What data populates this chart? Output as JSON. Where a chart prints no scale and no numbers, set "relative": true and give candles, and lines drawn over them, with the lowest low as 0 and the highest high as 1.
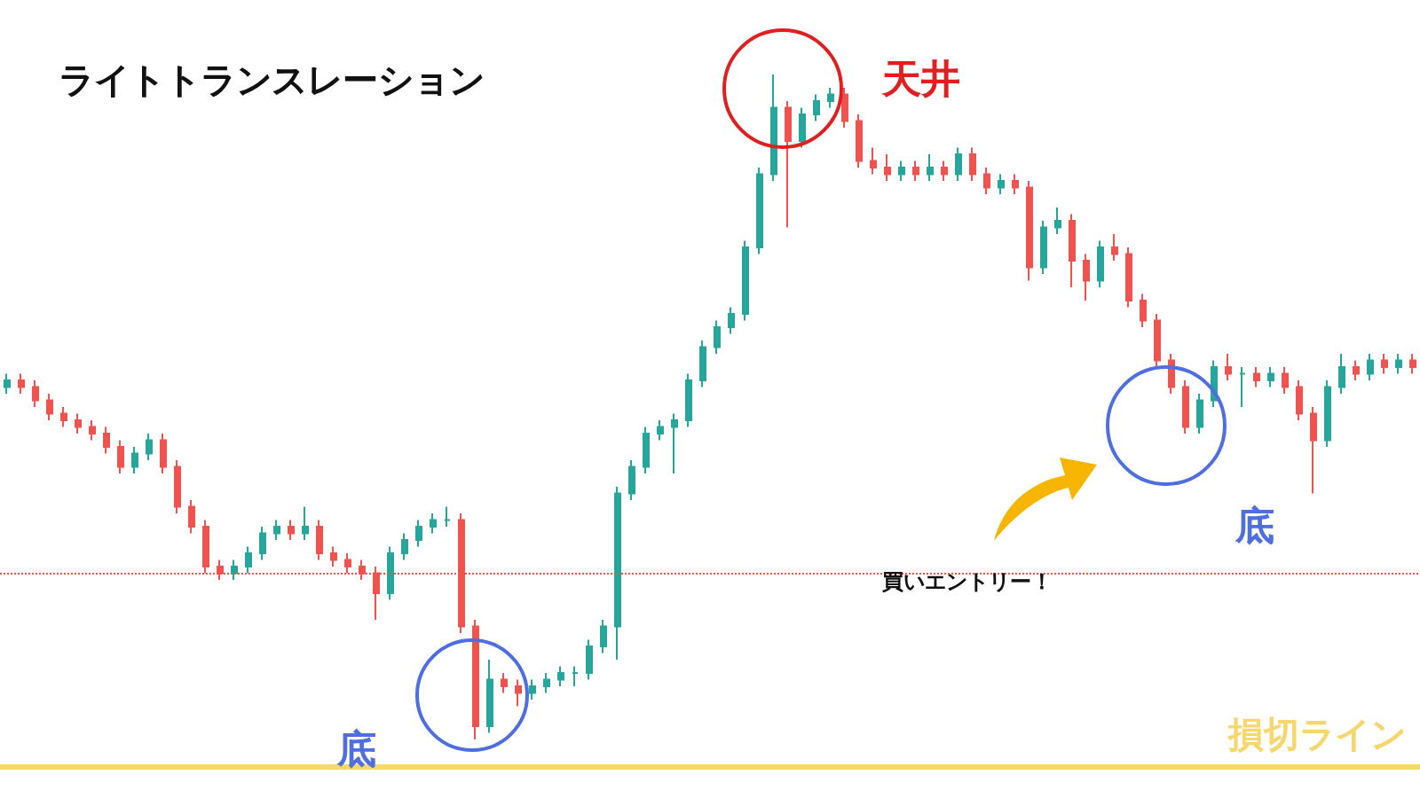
{
  "chart_data": {
    "type": "candlestick",
    "title": "ライトトランスレーション",
    "relative": true,
    "categories": [
      null,
      null,
      null,
      null,
      null,
      null,
      null,
      null,
      null,
      null,
      null,
      null,
      null,
      null,
      null,
      null,
      null,
      null,
      null,
      null,
      null,
      null,
      null,
      null,
      null,
      null,
      null,
      null,
      null,
      null,
      null,
      null,
      null,
      null,
      null,
      null,
      null,
      null,
      null,
      null,
      null,
      null,
      null,
      null,
      null,
      null,
      null,
      null,
      null,
      null,
      null,
      null,
      null,
      null,
      null,
      null,
      null,
      null,
      null,
      null,
      null,
      null,
      null,
      null,
      null,
      null,
      null,
      null,
      null,
      null,
      null,
      null,
      null,
      null,
      null,
      null,
      null,
      null,
      null,
      null,
      null,
      null,
      null,
      null,
      null,
      null,
      null,
      null,
      null,
      null,
      null,
      null,
      null,
      null,
      null,
      null,
      null,
      null,
      null,
      null
    ],
    "series": [
      {
        "ohlc": [
          [
            0.53,
            0.55,
            0.52,
            0.54
          ],
          [
            0.54,
            0.55,
            0.52,
            0.53
          ],
          [
            0.53,
            0.54,
            0.5,
            0.51
          ],
          [
            0.51,
            0.52,
            0.48,
            0.49
          ],
          [
            0.49,
            0.5,
            0.47,
            0.48
          ],
          [
            0.48,
            0.49,
            0.46,
            0.47
          ],
          [
            0.47,
            0.48,
            0.45,
            0.46
          ],
          [
            0.46,
            0.47,
            0.43,
            0.44
          ],
          [
            0.44,
            0.45,
            0.4,
            0.41
          ],
          [
            0.41,
            0.44,
            0.4,
            0.43
          ],
          [
            0.43,
            0.46,
            0.42,
            0.45
          ],
          [
            0.45,
            0.46,
            0.4,
            0.41
          ],
          [
            0.41,
            0.42,
            0.34,
            0.35
          ],
          [
            0.35,
            0.36,
            0.31,
            0.32
          ],
          [
            0.32,
            0.33,
            0.25,
            0.26
          ],
          [
            0.26,
            0.27,
            0.24,
            0.25
          ],
          [
            0.25,
            0.27,
            0.24,
            0.26
          ],
          [
            0.26,
            0.29,
            0.25,
            0.28
          ],
          [
            0.28,
            0.32,
            0.27,
            0.31
          ],
          [
            0.31,
            0.33,
            0.3,
            0.32
          ],
          [
            0.32,
            0.33,
            0.3,
            0.31
          ],
          [
            0.31,
            0.35,
            0.3,
            0.32
          ],
          [
            0.32,
            0.33,
            0.27,
            0.28
          ],
          [
            0.28,
            0.29,
            0.26,
            0.27
          ],
          [
            0.27,
            0.28,
            0.25,
            0.26
          ],
          [
            0.26,
            0.27,
            0.24,
            0.25
          ],
          [
            0.25,
            0.26,
            0.18,
            0.22
          ],
          [
            0.22,
            0.29,
            0.21,
            0.28
          ],
          [
            0.28,
            0.31,
            0.27,
            0.3
          ],
          [
            0.3,
            0.33,
            0.29,
            0.32
          ],
          [
            0.32,
            0.34,
            0.31,
            0.33
          ],
          [
            0.33,
            0.35,
            0.32,
            0.33
          ],
          [
            0.33,
            0.34,
            0.16,
            0.17
          ],
          [
            0.17,
            0.18,
            0,
            0.02
          ],
          [
            0.02,
            0.12,
            0.01,
            0.09
          ],
          [
            0.09,
            0.1,
            0.07,
            0.08
          ],
          [
            0.08,
            0.09,
            0.05,
            0.07
          ],
          [
            0.07,
            0.09,
            0.06,
            0.08
          ],
          [
            0.08,
            0.1,
            0.07,
            0.09
          ],
          [
            0.09,
            0.11,
            0.08,
            0.1
          ],
          [
            0.1,
            0.11,
            0.08,
            0.1
          ],
          [
            0.1,
            0.15,
            0.09,
            0.14
          ],
          [
            0.14,
            0.18,
            0.13,
            0.17
          ],
          [
            0.17,
            0.38,
            0.12,
            0.37
          ],
          [
            0.37,
            0.42,
            0.36,
            0.41
          ],
          [
            0.41,
            0.47,
            0.4,
            0.46
          ],
          [
            0.46,
            0.48,
            0.45,
            0.47
          ],
          [
            0.47,
            0.49,
            0.4,
            0.48
          ],
          [
            0.48,
            0.55,
            0.47,
            0.54
          ],
          [
            0.54,
            0.6,
            0.53,
            0.59
          ],
          [
            0.59,
            0.63,
            0.58,
            0.62
          ],
          [
            0.62,
            0.65,
            0.61,
            0.64
          ],
          [
            0.64,
            0.75,
            0.63,
            0.74
          ],
          [
            0.74,
            0.86,
            0.73,
            0.85
          ],
          [
            0.85,
            1,
            0.84,
            0.95
          ],
          [
            0.95,
            0.96,
            0.77,
            0.9
          ],
          [
            0.9,
            0.95,
            0.89,
            0.94
          ],
          [
            0.94,
            0.97,
            0.93,
            0.96
          ],
          [
            0.96,
            0.98,
            0.95,
            0.97
          ],
          [
            0.97,
            0.98,
            0.92,
            0.93
          ],
          [
            0.93,
            0.94,
            0.86,
            0.87
          ],
          [
            0.87,
            0.89,
            0.85,
            0.86
          ],
          [
            0.86,
            0.88,
            0.84,
            0.85
          ],
          [
            0.85,
            0.87,
            0.84,
            0.86
          ],
          [
            0.86,
            0.87,
            0.84,
            0.85
          ],
          [
            0.85,
            0.88,
            0.84,
            0.86
          ],
          [
            0.86,
            0.87,
            0.84,
            0.85
          ],
          [
            0.85,
            0.89,
            0.84,
            0.88
          ],
          [
            0.88,
            0.89,
            0.84,
            0.85
          ],
          [
            0.85,
            0.86,
            0.82,
            0.83
          ],
          [
            0.83,
            0.85,
            0.82,
            0.84
          ],
          [
            0.84,
            0.85,
            0.82,
            0.83
          ],
          [
            0.83,
            0.84,
            0.69,
            0.71
          ],
          [
            0.71,
            0.78,
            0.7,
            0.77
          ],
          [
            0.77,
            0.8,
            0.76,
            0.78
          ],
          [
            0.78,
            0.79,
            0.68,
            0.72
          ],
          [
            0.72,
            0.73,
            0.66,
            0.69
          ],
          [
            0.69,
            0.75,
            0.68,
            0.74
          ],
          [
            0.74,
            0.76,
            0.72,
            0.73
          ],
          [
            0.73,
            0.74,
            0.65,
            0.66
          ],
          [
            0.66,
            0.67,
            0.62,
            0.63
          ],
          [
            0.63,
            0.64,
            0.56,
            0.57
          ],
          [
            0.57,
            0.58,
            0.52,
            0.53
          ],
          [
            0.53,
            0.54,
            0.46,
            0.47
          ],
          [
            0.47,
            0.52,
            0.46,
            0.51
          ],
          [
            0.51,
            0.57,
            0.5,
            0.56
          ],
          [
            0.56,
            0.58,
            0.54,
            0.55
          ],
          [
            0.55,
            0.56,
            0.5,
            0.55
          ],
          [
            0.55,
            0.56,
            0.53,
            0.54
          ],
          [
            0.54,
            0.56,
            0.53,
            0.55
          ],
          [
            0.55,
            0.56,
            0.52,
            0.53
          ],
          [
            0.53,
            0.54,
            0.48,
            0.49
          ],
          [
            0.49,
            0.5,
            0.37,
            0.45
          ],
          [
            0.45,
            0.54,
            0.44,
            0.53
          ],
          [
            0.53,
            0.58,
            0.52,
            0.56
          ],
          [
            0.56,
            0.57,
            0.54,
            0.55
          ],
          [
            0.55,
            0.58,
            0.54,
            0.57
          ],
          [
            0.57,
            0.58,
            0.55,
            0.56
          ],
          [
            0.56,
            0.58,
            0.55,
            0.57
          ],
          [
            0.57,
            0.58,
            0.55,
            0.56
          ]
        ]
      }
    ],
    "ref_lines": [
      {
        "axis": "y",
        "value": 0.25,
        "color": "#ef5350",
        "line_style": "dotted"
      },
      {
        "axis": "y",
        "value": -0.04,
        "label": "損切ライン",
        "color": "#f5d76e",
        "line_style": "solid"
      }
    ],
    "annotations": [
      "天井",
      "底",
      "底",
      "買いエントリー！"
    ]
  }
}
